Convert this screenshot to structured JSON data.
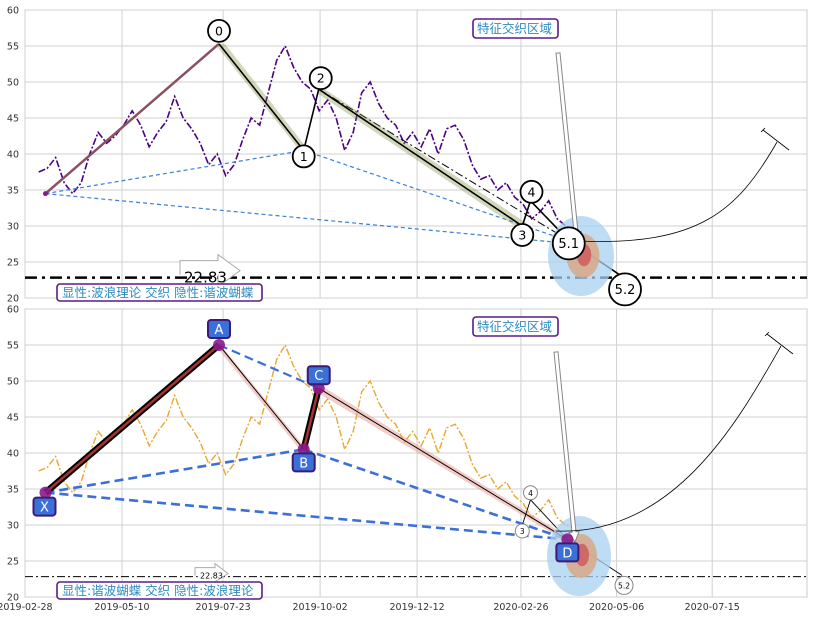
{
  "chart_data": [
    {
      "type": "line",
      "panel": "top",
      "ylim": [
        20,
        60
      ],
      "yticks": [
        20,
        25,
        30,
        35,
        40,
        45,
        50,
        55,
        60
      ],
      "grid": true,
      "colors": {
        "price": "#4b0082",
        "wave": "#000000",
        "band": "#7a8f3a",
        "support": "#000000",
        "trend": "#3a7fd5"
      },
      "wave_points": [
        {
          "label": "0",
          "x": "2019-07-20",
          "y": 55.3
        },
        {
          "label": "1",
          "x": "2019-09-20",
          "y": 40.5
        },
        {
          "label": "2",
          "x": "2019-10-01",
          "y": 49.0
        },
        {
          "label": "3",
          "x": "2020-02-27",
          "y": 30.0
        },
        {
          "label": "4",
          "x": "2020-03-04",
          "y": 33.5
        },
        {
          "label": "5.1",
          "x": "2020-04-01",
          "y": 28.0
        },
        {
          "label": "5.2",
          "x": "2020-05-10",
          "y": 23.0
        }
      ],
      "support_level": {
        "value": 22.83,
        "label": "22.83"
      },
      "annotation": "特征交织区域",
      "caption": "显性:波浪理论 交织 隐性:谐波蝴蝶",
      "price_line": {
        "x_start": "2019-03-10",
        "x_end": "2020-04-05",
        "y": [
          37.5,
          38.0,
          39.5,
          36.0,
          34.5,
          36.0,
          40.0,
          43.0,
          41.5,
          42.5,
          44.0,
          46.0,
          44.0,
          41.0,
          43.0,
          44.5,
          48.0,
          45.0,
          43.5,
          41.5,
          38.5,
          40.0,
          37.0,
          38.5,
          42.0,
          45.0,
          44.0,
          48.5,
          53.0,
          55.0,
          52.0,
          50.0,
          49.0,
          46.0,
          47.5,
          45.0,
          40.5,
          43.0,
          48.5,
          50.0,
          47.0,
          45.0,
          44.0,
          41.5,
          43.0,
          41.0,
          43.5,
          40.0,
          43.5,
          44.0,
          42.0,
          38.5,
          36.5,
          37.0,
          35.0,
          36.0,
          34.0,
          33.0,
          31.0,
          32.0,
          33.5,
          31.0,
          30.0,
          29.5
        ]
      }
    },
    {
      "type": "line",
      "panel": "bottom",
      "ylim": [
        20,
        60
      ],
      "yticks": [
        20,
        25,
        30,
        35,
        40,
        45,
        50,
        55,
        60
      ],
      "grid": true,
      "colors": {
        "price": "#e8a830",
        "leg": "#000000",
        "leg_fill": "#a83232",
        "dashed": "#3a70d8",
        "label_bg": "#3a70d8",
        "dot": "#8a1a8a"
      },
      "x_ticks": [
        "2019-02-28",
        "2019-05-10",
        "2019-07-23",
        "2019-10-02",
        "2019-12-12",
        "2020-02-26",
        "2020-05-06",
        "2020-07-15"
      ],
      "pattern_points": [
        {
          "label": "X",
          "x": "2019-03-15",
          "y": 34.5
        },
        {
          "label": "A",
          "x": "2019-07-20",
          "y": 55.0
        },
        {
          "label": "B",
          "x": "2019-09-20",
          "y": 40.5
        },
        {
          "label": "C",
          "x": "2019-10-01",
          "y": 49.0
        },
        {
          "label": "D",
          "x": "2020-03-31",
          "y": 28.0
        }
      ],
      "wave_markers": [
        {
          "label": "3",
          "x": "2020-02-27",
          "y": 30.0
        },
        {
          "label": "4",
          "x": "2020-03-04",
          "y": 33.5
        },
        {
          "label": "5.2",
          "x": "2020-05-10",
          "y": 23.0
        }
      ],
      "support_level": {
        "value": 22.83,
        "label": "22.83"
      },
      "annotation": "特征交织区域",
      "caption": "显性:谐波蝴蝶 交织 隐性:波浪理论"
    }
  ]
}
